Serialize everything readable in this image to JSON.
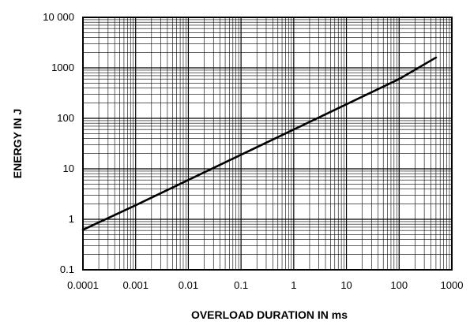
{
  "chart_data": {
    "type": "line",
    "title": "",
    "xlabel": "OVERLOAD DURATION IN ms",
    "ylabel": "ENERGY IN J",
    "xscale": "log",
    "yscale": "log",
    "xlim": [
      0.0001,
      1000
    ],
    "ylim": [
      0.1,
      10000
    ],
    "grid": true,
    "legend": "none",
    "x_ticks": [
      0.0001,
      0.001,
      0.01,
      0.1,
      1,
      10,
      100,
      1000
    ],
    "x_tick_labels": [
      "0.0001",
      "0.001",
      "0.01",
      "0.1",
      "1",
      "10",
      "100",
      "1000"
    ],
    "y_ticks": [
      0.1,
      1,
      10,
      100,
      1000,
      10000
    ],
    "y_tick_labels": [
      "0.1",
      "1",
      "10",
      "100",
      "1000",
      "10 000"
    ],
    "series": [
      {
        "x": [
          0.0001,
          0.001,
          0.01,
          0.1,
          1,
          10,
          100,
          500
        ],
        "y": [
          0.62,
          1.9,
          6.0,
          19,
          60,
          190,
          600,
          1600
        ]
      }
    ],
    "line_color": "#000000",
    "grid_color": "#000000"
  }
}
